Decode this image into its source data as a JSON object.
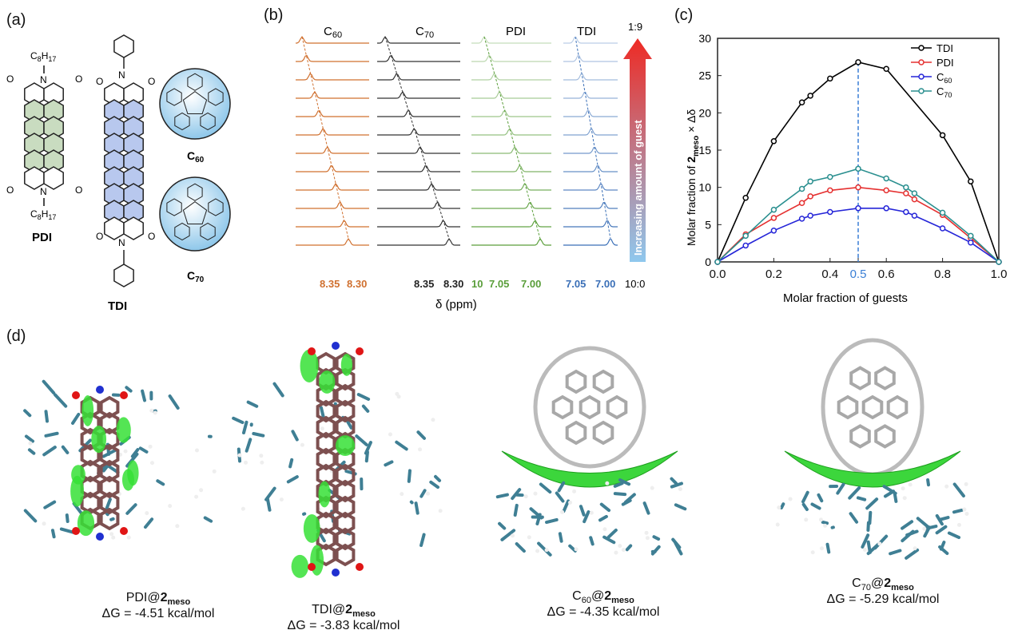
{
  "panel_labels": {
    "a": "(a)",
    "b": "(b)",
    "c": "(c)",
    "d": "(d)"
  },
  "panel_a": {
    "pdi_name": "PDI",
    "tdi_name": "TDI",
    "c60_main": "C",
    "c60_sub": "60",
    "c70_main": "C",
    "c70_sub": "70",
    "chain_main": "C",
    "chain_sub": "8",
    "chain_h": "H",
    "chain_hsub": "17",
    "atom_o": "O",
    "atom_n": "N"
  },
  "panel_b": {
    "titles": [
      {
        "main": "C",
        "sub": "60"
      },
      {
        "main": "C",
        "sub": "70"
      },
      {
        "main": "PDI",
        "sub": ""
      },
      {
        "main": "TDI",
        "sub": ""
      }
    ],
    "ticks": [
      {
        "labels": [
          "8.35",
          "8.30"
        ],
        "color": "#d0702f"
      },
      {
        "labels": [
          "8.35",
          "8.30"
        ],
        "color": "#222222"
      },
      {
        "labels": [
          "10",
          "7.05",
          "7.00"
        ],
        "color": "#5a9e3a"
      },
      {
        "labels": [
          "7.05",
          "7.00"
        ],
        "color": "#3a6fb7"
      }
    ],
    "axis_label": "δ (ppm)",
    "ratio_top": "1:9",
    "ratio_bottom": "10:0",
    "arrow_text": "Increasing amount of guest",
    "n_spectra": 12
  },
  "chart_data": {
    "type": "line",
    "xlabel": "Molar fraction of guests",
    "ylabel_parts": {
      "pre": "Molar fraction of ",
      "bold": "2",
      "sub": "meso",
      "post": " × Δδ"
    },
    "xlim": [
      0.0,
      1.0
    ],
    "ylim": [
      0,
      30
    ],
    "xticks": [
      "0.0",
      "0.2",
      "0.4",
      "0.5",
      "0.6",
      "0.8",
      "1.0"
    ],
    "yticks": [
      "0",
      "5",
      "10",
      "15",
      "20",
      "25",
      "30"
    ],
    "highlight_x": 0.5,
    "highlight_color": "#3a7fd5",
    "legend_position": "top-right",
    "series": [
      {
        "name": "TDI",
        "name_sub": "",
        "color": "#000000",
        "x": [
          0.0,
          0.1,
          0.2,
          0.3,
          0.33,
          0.4,
          0.5,
          0.6,
          0.8,
          0.9,
          1.0
        ],
        "y": [
          0,
          8.6,
          16.2,
          21.4,
          22.3,
          24.6,
          26.8,
          25.9,
          17.0,
          10.8,
          0
        ]
      },
      {
        "name": "PDI",
        "name_sub": "",
        "color": "#e53030",
        "x": [
          0.0,
          0.1,
          0.2,
          0.3,
          0.33,
          0.4,
          0.5,
          0.6,
          0.67,
          0.7,
          0.8,
          0.9,
          1.0
        ],
        "y": [
          0,
          3.7,
          5.9,
          7.9,
          8.8,
          9.6,
          10.0,
          9.6,
          9.2,
          8.4,
          6.3,
          3.2,
          0
        ]
      },
      {
        "name": "C",
        "name_sub": "60",
        "color": "#2525d8",
        "x": [
          0.0,
          0.1,
          0.2,
          0.3,
          0.33,
          0.4,
          0.5,
          0.6,
          0.67,
          0.7,
          0.8,
          0.9,
          1.0
        ],
        "y": [
          0,
          2.2,
          4.2,
          5.8,
          6.2,
          6.7,
          7.2,
          7.2,
          6.7,
          6.2,
          4.5,
          2.6,
          0
        ]
      },
      {
        "name": "C",
        "name_sub": "70",
        "color": "#2a8f8f",
        "x": [
          0.0,
          0.1,
          0.2,
          0.3,
          0.33,
          0.4,
          0.5,
          0.6,
          0.67,
          0.7,
          0.8,
          0.9,
          1.0
        ],
        "y": [
          0,
          3.5,
          7.0,
          9.8,
          10.8,
          11.4,
          12.5,
          11.2,
          10.0,
          9.2,
          6.6,
          3.5,
          0
        ]
      }
    ]
  },
  "panel_d": {
    "complexes": [
      {
        "guest": "PDI@",
        "host": "2",
        "sub": "meso",
        "dg": "ΔG = -4.51 kcal/mol"
      },
      {
        "guest": "TDI@",
        "host": "2",
        "sub": "meso",
        "dg": "ΔG = -3.83 kcal/mol"
      },
      {
        "guest": "C",
        "guest_sub": "60",
        "guest_at": "@",
        "host": "2",
        "sub": "meso",
        "dg": "ΔG = -4.35 kcal/mol"
      },
      {
        "guest": "C",
        "guest_sub": "70",
        "guest_at": "@",
        "host": "2",
        "sub": "meso",
        "dg": "ΔG = -5.29 kcal/mol"
      }
    ]
  }
}
